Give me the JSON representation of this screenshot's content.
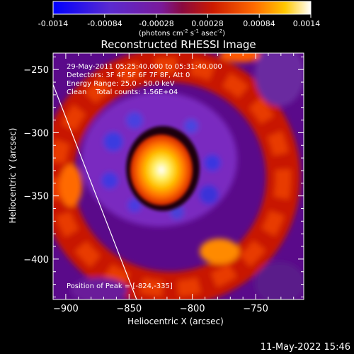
{
  "colorbar": {
    "ticks": [
      "-0.0014",
      "-0.00084",
      "-0.00028",
      "0.00028",
      "0.00084",
      "0.0014"
    ],
    "units_text": "(photons cm",
    "units_sup1": "-2",
    "units_mid": " s",
    "units_sup2": "-1",
    "units_mid2": " asec",
    "units_sup3": "-2",
    "units_end": ")"
  },
  "chart_data": {
    "type": "heatmap",
    "title": "Reconstructed RHESSI Image",
    "xlabel": "Heliocentric X (arcsec)",
    "ylabel": "Heliocentric Y (arcsec)",
    "xlim": [
      -910,
      -712
    ],
    "ylim": [
      -432,
      -237
    ],
    "xticks": [
      -900,
      -850,
      -800,
      -750
    ],
    "xtick_labels": [
      "−900",
      "−850",
      "−800",
      "−750"
    ],
    "yticks": [
      -250,
      -300,
      -350,
      -400
    ],
    "ytick_labels": [
      "−250",
      "−300",
      "−350",
      "−400"
    ],
    "color_range": [
      -0.0014,
      0.0014
    ],
    "colormap": [
      "#0000ff",
      "#7a1ac8",
      "#5a0a8a",
      "#cc1a00",
      "#ff5a00",
      "#ffc800",
      "#ffffff"
    ],
    "peak": [
      -824,
      -335
    ],
    "annotations": [
      "29-May-2011 05:25:40.000 to 05:31:40.000",
      "Detectors: 3F 4F 5F 6F 7F 8F, Att 0",
      "Energy Range: 25.0 - 50.0 keV",
      "Clean    Total counts: 1.56E+04"
    ],
    "peak_label": "Position of Peak = [-824,-335]",
    "limb_line": [
      [
        -910,
        -262
      ],
      [
        -844,
        -432
      ]
    ]
  },
  "footer": {
    "timestamp": "11-May-2022 15:46"
  }
}
